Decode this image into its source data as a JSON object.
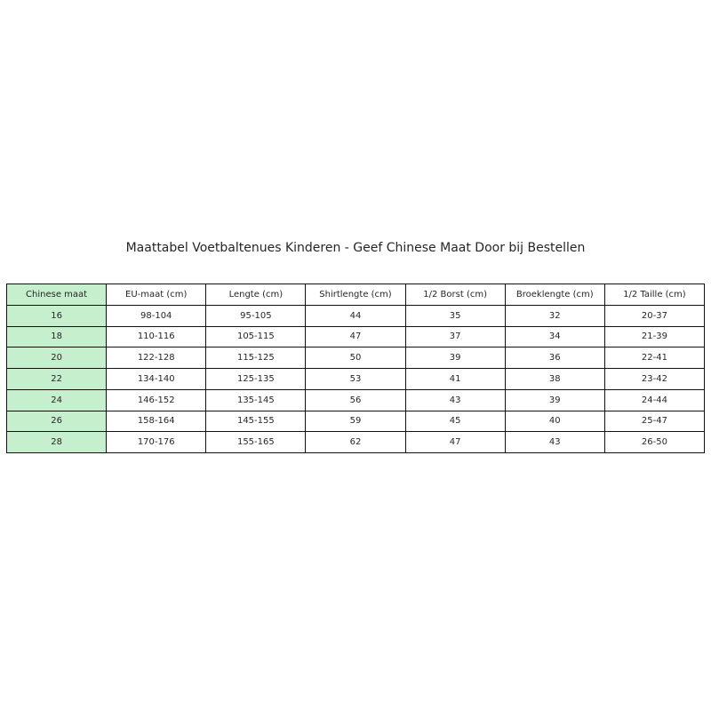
{
  "title": "Maattabel Voetbaltenues Kinderen - Geef Chinese Maat Door bij Bestellen",
  "first_column_color": "#c6efce",
  "table": {
    "headers": [
      "Chinese maat",
      "EU-maat (cm)",
      "Lengte (cm)",
      "Shirtlengte (cm)",
      "1/2 Borst (cm)",
      "Broeklengte (cm)",
      "1/2 Taille (cm)"
    ],
    "rows": [
      [
        "16",
        "98-104",
        "95-105",
        "44",
        "35",
        "32",
        "20-37"
      ],
      [
        "18",
        "110-116",
        "105-115",
        "47",
        "37",
        "34",
        "21-39"
      ],
      [
        "20",
        "122-128",
        "115-125",
        "50",
        "39",
        "36",
        "22-41"
      ],
      [
        "22",
        "134-140",
        "125-135",
        "53",
        "41",
        "38",
        "23-42"
      ],
      [
        "24",
        "146-152",
        "135-145",
        "56",
        "43",
        "39",
        "24-44"
      ],
      [
        "26",
        "158-164",
        "145-155",
        "59",
        "45",
        "40",
        "25-47"
      ],
      [
        "28",
        "170-176",
        "155-165",
        "62",
        "47",
        "43",
        "26-50"
      ]
    ]
  }
}
